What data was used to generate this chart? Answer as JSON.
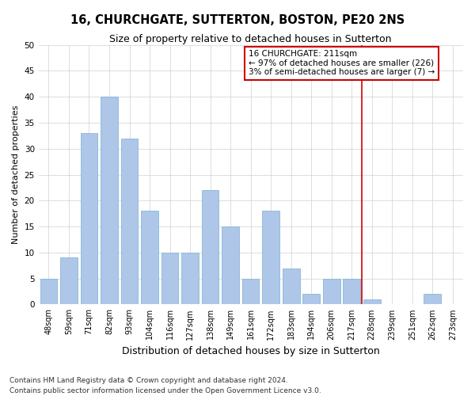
{
  "title": "16, CHURCHGATE, SUTTERTON, BOSTON, PE20 2NS",
  "subtitle": "Size of property relative to detached houses in Sutterton",
  "xlabel": "Distribution of detached houses by size in Sutterton",
  "ylabel": "Number of detached properties",
  "categories": [
    "48sqm",
    "59sqm",
    "71sqm",
    "82sqm",
    "93sqm",
    "104sqm",
    "116sqm",
    "127sqm",
    "138sqm",
    "149sqm",
    "161sqm",
    "172sqm",
    "183sqm",
    "194sqm",
    "206sqm",
    "217sqm",
    "228sqm",
    "239sqm",
    "251sqm",
    "262sqm",
    "273sqm"
  ],
  "values": [
    5,
    9,
    33,
    40,
    32,
    18,
    10,
    10,
    22,
    15,
    5,
    18,
    7,
    2,
    5,
    5,
    1,
    0,
    0,
    2,
    0
  ],
  "bar_color": "#aec6e8",
  "bar_edgecolor": "#7aafd4",
  "vline_x_index": 15.5,
  "annotation_text": "16 CHURCHGATE: 211sqm\n← 97% of detached houses are smaller (226)\n3% of semi-detached houses are larger (7) →",
  "annotation_box_color": "#ffffff",
  "annotation_box_edgecolor": "#cc0000",
  "vline_color": "#cc0000",
  "ylim": [
    0,
    50
  ],
  "yticks": [
    0,
    5,
    10,
    15,
    20,
    25,
    30,
    35,
    40,
    45,
    50
  ],
  "footer": "Contains HM Land Registry data © Crown copyright and database right 2024.\nContains public sector information licensed under the Open Government Licence v3.0.",
  "background_color": "#ffffff",
  "grid_color": "#d0d0d0",
  "title_fontsize": 10.5,
  "subtitle_fontsize": 9,
  "ylabel_fontsize": 8,
  "xlabel_fontsize": 9,
  "tick_fontsize": 7,
  "annotation_fontsize": 7.5,
  "footer_fontsize": 6.5
}
